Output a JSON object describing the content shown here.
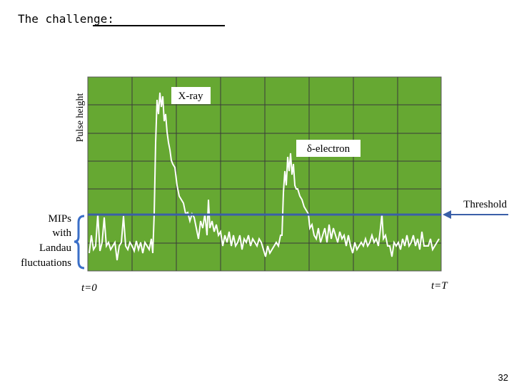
{
  "header": {
    "title": "The challenge:"
  },
  "figure": {
    "y_axis_label": "Pulse height",
    "x_ray_label": "X-ray",
    "delta_electron_label": "δ-electron",
    "threshold_label": "Threshold",
    "mips_label": [
      "MIPs",
      "with",
      "Landau",
      "fluctuations"
    ],
    "t_start_label": "t=0",
    "t_end_label": "t=T"
  },
  "footer": {
    "page_number": "32"
  }
}
